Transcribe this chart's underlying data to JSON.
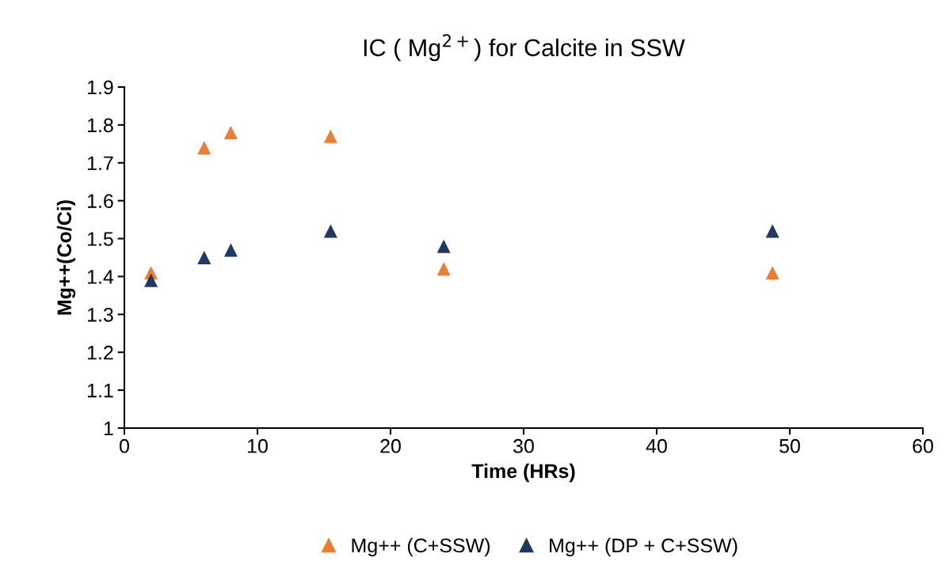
{
  "chart_data": {
    "type": "scatter",
    "title": "IC ( Mg$^{2+}$) for Calcite in SSW",
    "xlabel": "Time (HRs)",
    "ylabel": "Mg++(Co/Ci)",
    "xlim": [
      0,
      60
    ],
    "xticks": [
      0,
      10,
      20,
      30,
      40,
      50,
      60
    ],
    "ylim": [
      1,
      1.9
    ],
    "yticks": [
      1,
      1.1,
      1.2,
      1.3,
      1.4,
      1.5,
      1.6,
      1.7,
      1.8,
      1.9
    ],
    "x": [
      2.0,
      6.0,
      8.0,
      15.5,
      24.0,
      48.7
    ],
    "series": [
      {
        "name": "Mg++ (C+SSW)",
        "color": "#ed7d31",
        "values": [
          1.41,
          1.74,
          1.78,
          1.77,
          1.42,
          1.41
        ]
      },
      {
        "name": "Mg++ (DP + C+SSW)",
        "color": "#1f3864",
        "values": [
          1.39,
          1.45,
          1.47,
          1.52,
          1.48,
          1.52
        ]
      }
    ],
    "marker": "triangle",
    "grid": false,
    "legend": "bottom"
  }
}
